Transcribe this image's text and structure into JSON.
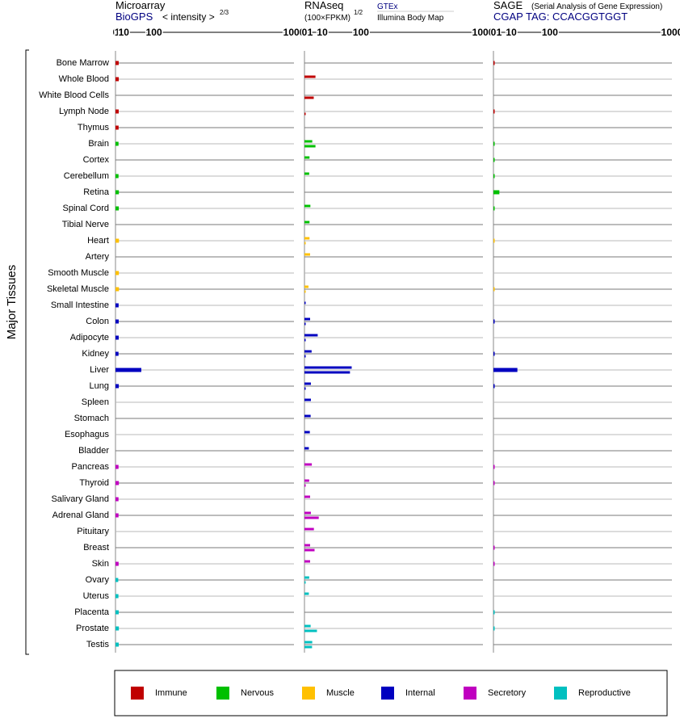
{
  "chart_data": {
    "type": "bar",
    "orientation": "horizontal",
    "ylabel": "Major Tissues",
    "scale": "power 2/3 (ticks 0, 1, 10, 100, 1000)",
    "ticks": [
      0,
      1,
      10,
      100,
      1000
    ],
    "ticks_labels": [
      "0",
      "1",
      "10",
      "100",
      "1000"
    ],
    "xlim": [
      0,
      1000
    ],
    "categories": [
      "Bone Marrow",
      "Whole Blood",
      "White Blood Cells",
      "Lymph Node",
      "Thymus",
      "Brain",
      "Cortex",
      "Cerebellum",
      "Retina",
      "Spinal Cord",
      "Tibial Nerve",
      "Heart",
      "Artery",
      "Smooth Muscle",
      "Skeletal Muscle",
      "Small Intestine",
      "Colon",
      "Adipocyte",
      "Kidney",
      "Liver",
      "Lung",
      "Spleen",
      "Stomach",
      "Esophagus",
      "Bladder",
      "Pancreas",
      "Thyroid",
      "Salivary Gland",
      "Adrenal Gland",
      "Pituitary",
      "Breast",
      "Skin",
      "Ovary",
      "Uterus",
      "Placenta",
      "Prostate",
      "Testis"
    ],
    "groups": [
      "immune",
      "immune",
      "immune",
      "immune",
      "immune",
      "nervous",
      "nervous",
      "nervous",
      "nervous",
      "nervous",
      "nervous",
      "muscle",
      "muscle",
      "muscle",
      "muscle",
      "internal",
      "internal",
      "internal",
      "internal",
      "internal",
      "internal",
      "internal",
      "internal",
      "internal",
      "internal",
      "secretory",
      "secretory",
      "secretory",
      "secretory",
      "secretory",
      "secretory",
      "secretory",
      "reproductive",
      "reproductive",
      "reproductive",
      "reproductive",
      "reproductive"
    ],
    "panels": {
      "microarray": {
        "title": "Microarray",
        "source": "BioGPS",
        "measure": "< intensity >",
        "exponent": "2/3",
        "values": [
          2.4,
          2.5,
          null,
          2.4,
          2.3,
          2.2,
          null,
          2.2,
          2.6,
          2.5,
          null,
          2.7,
          null,
          2.6,
          2.7,
          2.3,
          2.4,
          2.4,
          2.2,
          55,
          2.5,
          null,
          null,
          null,
          null,
          2.2,
          2.6,
          2.2,
          2.2,
          null,
          null,
          2.3,
          1.9,
          2.1,
          2.4,
          2.6,
          2.4
        ]
      },
      "rnaseq": {
        "title": "RNAseq",
        "measure": "(100×FPKM)",
        "exponent": "1/2",
        "series_names": [
          "GTEx",
          "Illumina Body Map"
        ],
        "gtex": [
          null,
          null,
          null,
          null,
          null,
          1.9,
          null,
          null,
          null,
          null,
          null,
          null,
          null,
          null,
          null,
          null,
          null,
          null,
          null,
          70,
          null,
          null,
          null,
          null,
          null,
          null,
          null,
          null,
          null,
          null,
          null,
          null,
          null,
          null,
          null,
          null,
          null
        ],
        "illumina": [
          null,
          null,
          null,
          null,
          null,
          null,
          null,
          null,
          null,
          null,
          null,
          null,
          null,
          null,
          null,
          null,
          null,
          null,
          null,
          65,
          null,
          null,
          null,
          null,
          null,
          null,
          null,
          null,
          null,
          null,
          null,
          null,
          null,
          null,
          null,
          null,
          null
        ],
        "pair_top": [
          null,
          3.8,
          null,
          null,
          null,
          1.9,
          0.8,
          0.7,
          null,
          1.1,
          0.8,
          0.8,
          1.0,
          null,
          0.5,
          0.02,
          1.0,
          5.5,
          1.6,
          70,
          1.3,
          1.3,
          1.2,
          0.9,
          0.6,
          1.7,
          0.7,
          1.0,
          1.3,
          2.8,
          1.0,
          1.0,
          0.7,
          0.6,
          null,
          1.2,
          1.9
        ],
        "pair_bottom": [
          null,
          null,
          2.7,
          0.02,
          null,
          3.8,
          null,
          null,
          null,
          null,
          null,
          0.02,
          null,
          null,
          0.02,
          null,
          0.02,
          0.02,
          0.02,
          65,
          0.03,
          null,
          null,
          null,
          null,
          null,
          0.02,
          null,
          6.4,
          null,
          3.2,
          null,
          0.02,
          null,
          null,
          4.9,
          1.8
        ]
      },
      "sage": {
        "title": "SAGE",
        "subtitle": "(Serial Analysis of Gene Expression)",
        "tag_label": "CGAP TAG: CCACGGTGGT",
        "values": [
          0.03,
          null,
          null,
          0.03,
          null,
          0.02,
          0.02,
          0.02,
          1.1,
          0.02,
          null,
          0.01,
          null,
          null,
          0.01,
          null,
          0.03,
          null,
          0.03,
          18,
          0.03,
          null,
          null,
          null,
          null,
          0.03,
          0.03,
          null,
          null,
          null,
          0.03,
          0.03,
          null,
          null,
          0.02,
          0.02,
          null
        ]
      }
    },
    "legend": [
      {
        "key": "immune",
        "label": "Immune",
        "color": "#c00000"
      },
      {
        "key": "nervous",
        "label": "Nervous",
        "color": "#00c000"
      },
      {
        "key": "muscle",
        "label": "Muscle",
        "color": "#ffc000"
      },
      {
        "key": "internal",
        "label": "Internal",
        "color": "#0000c0"
      },
      {
        "key": "secretory",
        "label": "Secretory",
        "color": "#c000c0"
      },
      {
        "key": "reproductive",
        "label": "Reproductive",
        "color": "#00c0c0"
      }
    ]
  }
}
